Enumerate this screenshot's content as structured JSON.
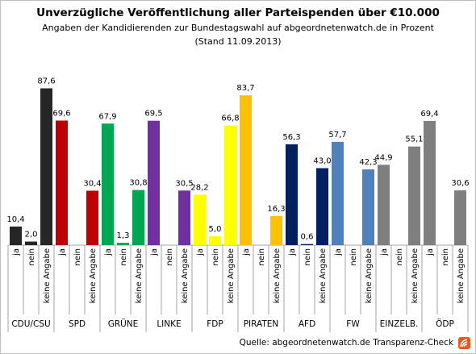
{
  "title": "Unverzügliche Veröffentlichung aller Parteispenden über €10.000",
  "subtitle": "Angaben der Kandidierenden zur Bundestagswahl auf abgeordnetenwatch.de  in Prozent",
  "date_note": "(Stand 11.09.2013)",
  "source": "Quelle: abgeordnetenwatch.de Transparenz-Check",
  "logo_icon": "abgeordnetenwatch-logo-icon",
  "chart_data": {
    "type": "bar",
    "title": "Unverzügliche Veröffentlichung aller Parteispenden über €10.000",
    "subtitle": "Angaben der Kandidierenden zur Bundestagswahl auf abgeordnetenwatch.de  in Prozent",
    "answer_labels": [
      "ja",
      "nein",
      "keine Angabe"
    ],
    "ylim": [
      0,
      100
    ],
    "grid": false,
    "legend": "none",
    "groups": [
      {
        "party": "CDU/CSU",
        "ja": 10.4,
        "nein": 2.0,
        "keine_angabe": 87.6,
        "color": "#262626"
      },
      {
        "party": "SPD",
        "ja": 69.6,
        "nein": null,
        "keine_angabe": 30.4,
        "color": "#c00000"
      },
      {
        "party": "GRÜNE",
        "ja": 67.9,
        "nein": 1.3,
        "keine_angabe": 30.8,
        "color": "#00a651"
      },
      {
        "party": "LINKE",
        "ja": 69.5,
        "nein": null,
        "keine_angabe": 30.5,
        "color": "#7030a0"
      },
      {
        "party": "FDP",
        "ja": 28.2,
        "nein": 5.0,
        "keine_angabe": 66.8,
        "color": "#ffff00"
      },
      {
        "party": "PIRATEN",
        "ja": 83.7,
        "nein": null,
        "keine_angabe": 16.3,
        "color": "#ffc000"
      },
      {
        "party": "AFD",
        "ja": 56.3,
        "nein": 0.6,
        "keine_angabe": 43.0,
        "color": "#002060"
      },
      {
        "party": "FW",
        "ja": 57.7,
        "nein": null,
        "keine_angabe": 42.3,
        "color": "#4f81bd"
      },
      {
        "party": "EINZELB.",
        "ja": 44.9,
        "nein": null,
        "keine_angabe": 55.1,
        "color": "#7f7f7f"
      },
      {
        "party": "ÖDP",
        "ja": 69.4,
        "nein": null,
        "keine_angabe": 30.6,
        "color": "#7f7f7f"
      }
    ]
  }
}
